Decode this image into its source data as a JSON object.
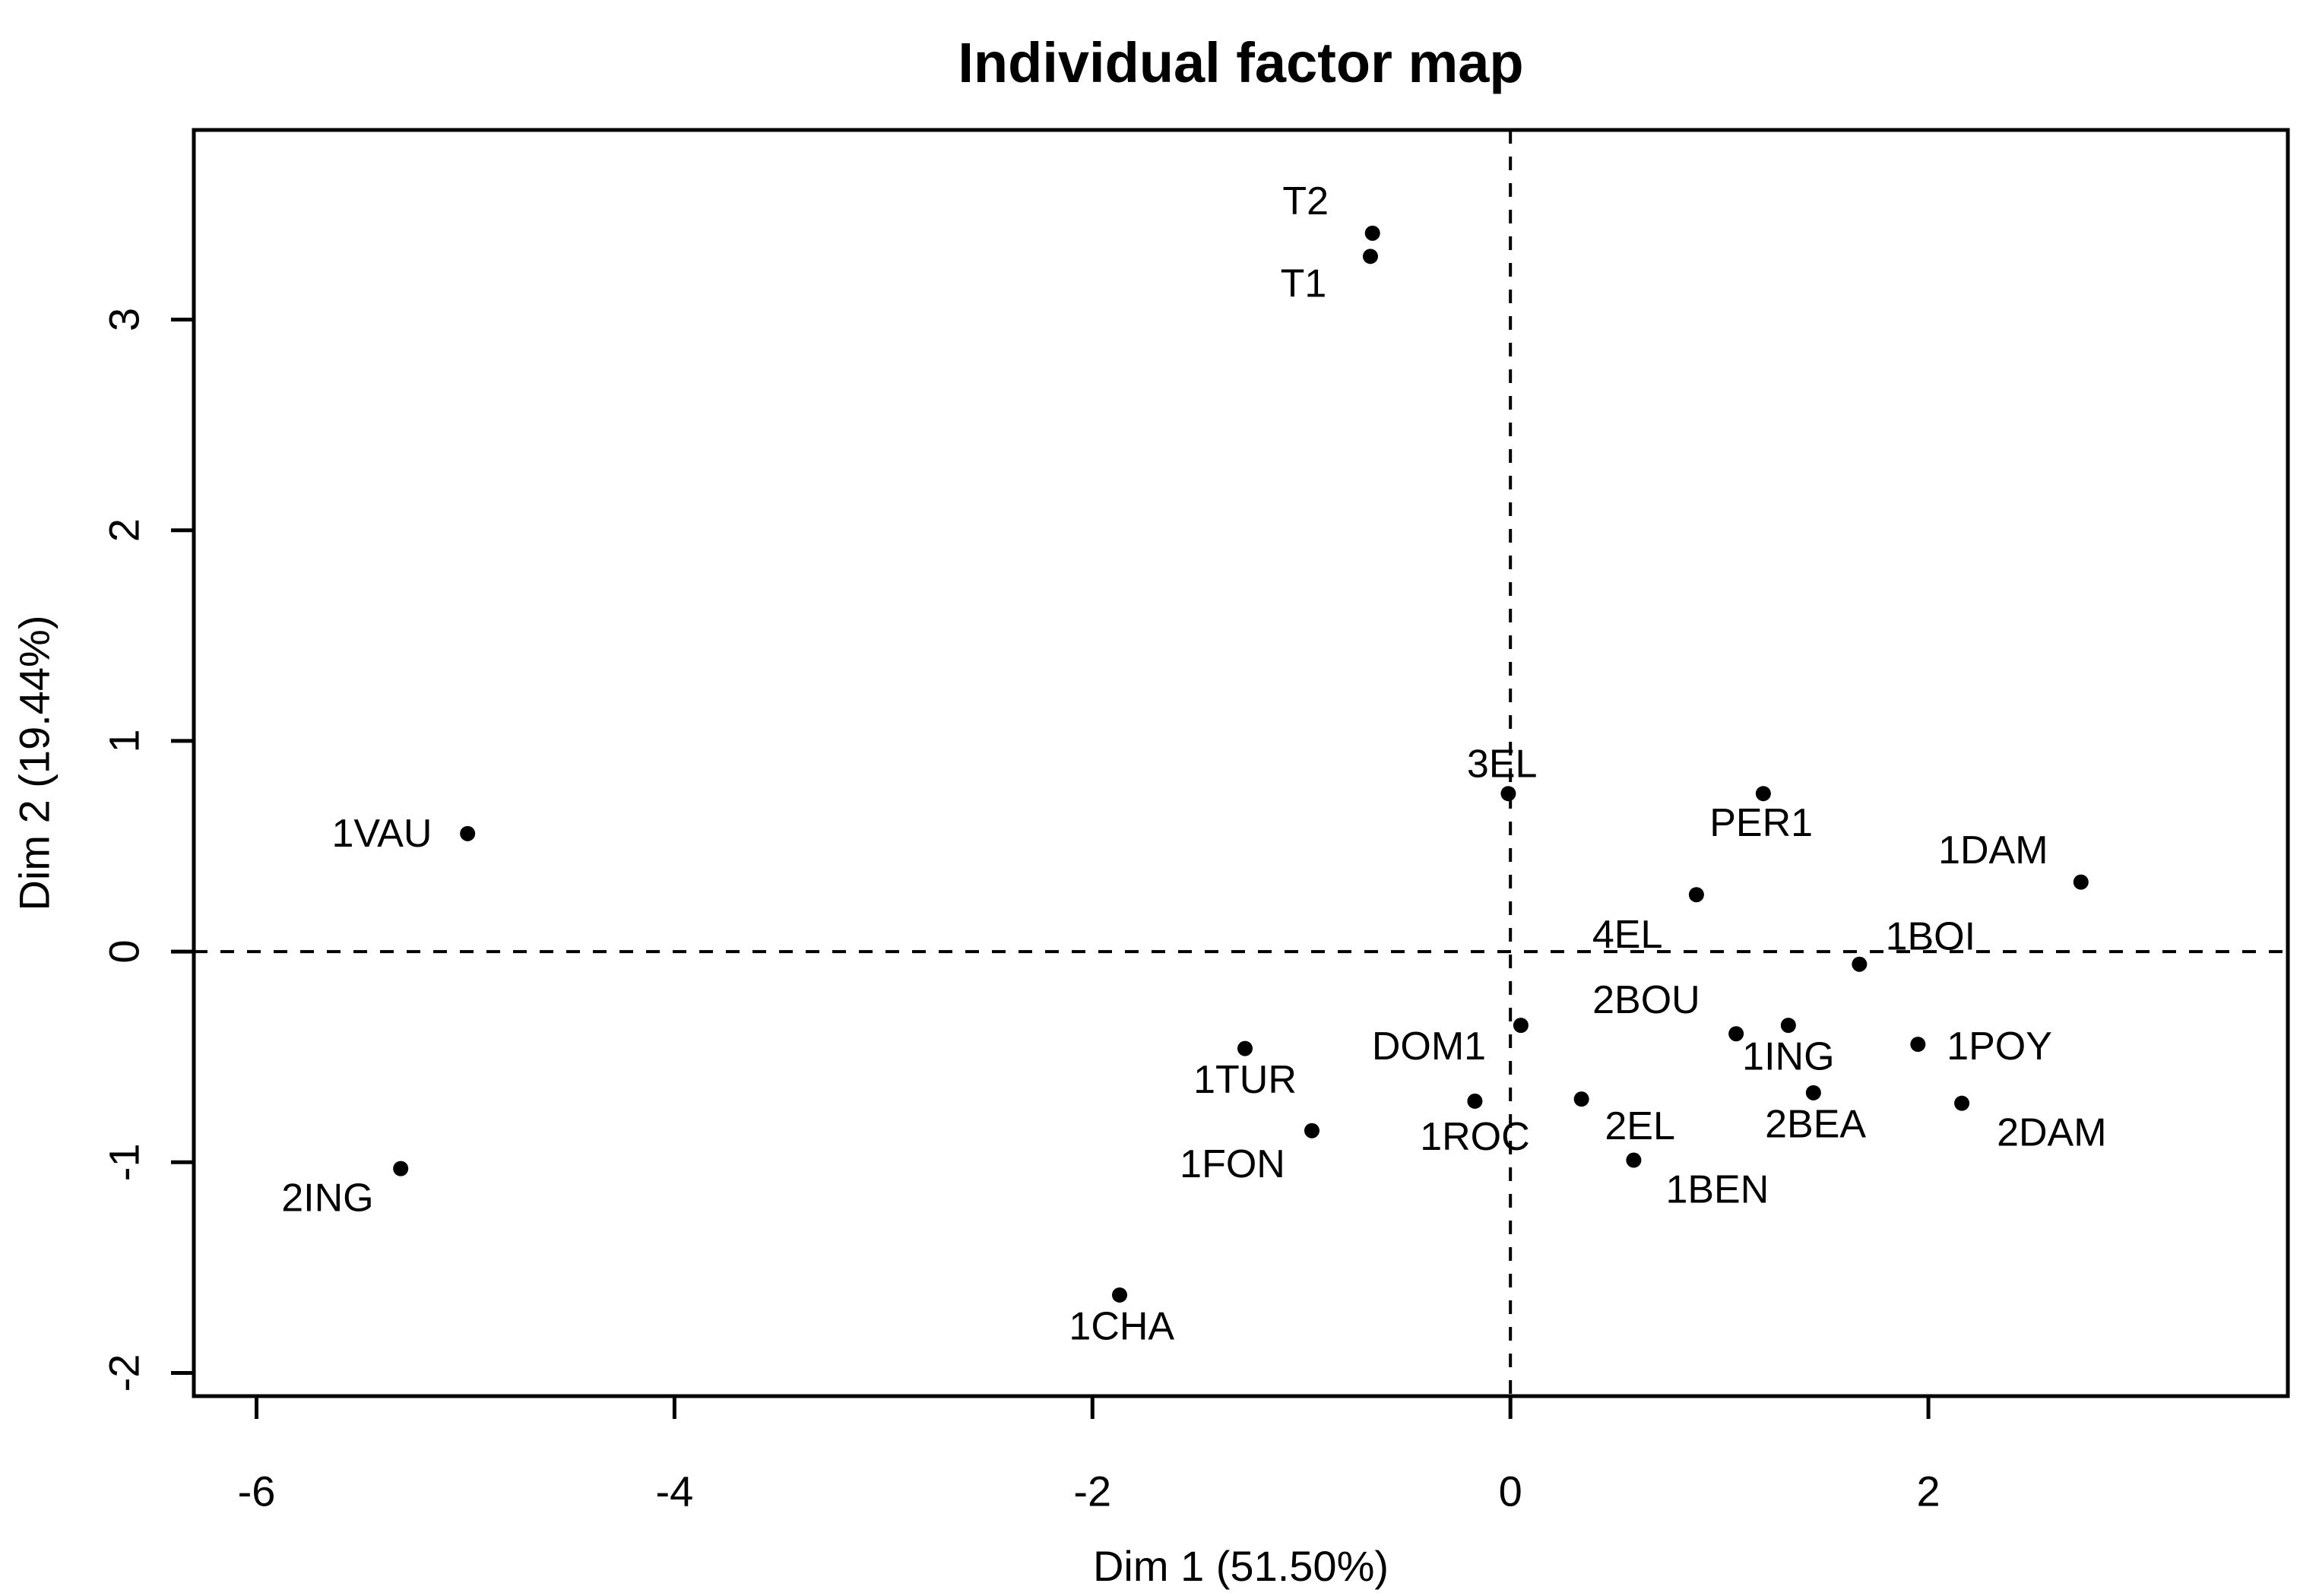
{
  "title": "Individual factor map",
  "axes": {
    "xlabel": "Dim 1 (51.50%)",
    "ylabel": "Dim 2 (19.44%)"
  },
  "colors": {
    "background": "#ffffff",
    "foreground": "#000000",
    "point_color": "#000000",
    "reference_line_color": "#000000"
  },
  "chart_data": {
    "type": "scatter",
    "title": "Individual factor map",
    "xlabel": "Dim 1 (51.50%)",
    "ylabel": "Dim 2 (19.44%)",
    "xlim": [
      -6.3,
      3.72
    ],
    "ylim": [
      -2.11,
      3.9
    ],
    "x_ticks": [
      -6,
      -4,
      -2,
      0,
      2
    ],
    "y_ticks": [
      -2,
      -1,
      0,
      1,
      2,
      3
    ],
    "grid": false,
    "legend": "none",
    "reference_lines": {
      "vline_x": 0,
      "hline_y": 0,
      "style": "dashed"
    },
    "points": [
      {
        "label": "T2",
        "x": -0.66,
        "y": 3.41,
        "label_x": -0.98,
        "label_y": 3.56
      },
      {
        "label": "T1",
        "x": -0.67,
        "y": 3.3,
        "label_x": -0.99,
        "label_y": 3.17
      },
      {
        "label": "1VAU",
        "x": -4.99,
        "y": 0.56,
        "label_x": -5.4,
        "label_y": 0.56
      },
      {
        "label": "2ING",
        "x": -5.31,
        "y": -1.03,
        "label_x": -5.66,
        "label_y": -1.17
      },
      {
        "label": "1CHA",
        "x": -1.87,
        "y": -1.63,
        "label_x": -1.86,
        "label_y": -1.78
      },
      {
        "label": "1TUR",
        "x": -1.27,
        "y": -0.46,
        "label_x": -1.27,
        "label_y": -0.61
      },
      {
        "label": "1FON",
        "x": -0.95,
        "y": -0.85,
        "label_x": -1.33,
        "label_y": -1.01
      },
      {
        "label": "DOM1",
        "x": 0.05,
        "y": -0.35,
        "label_x": -0.39,
        "label_y": -0.45
      },
      {
        "label": "1ROC",
        "x": -0.17,
        "y": -0.71,
        "label_x": -0.17,
        "label_y": -0.88
      },
      {
        "label": "2EL",
        "x": 0.34,
        "y": -0.7,
        "label_x": 0.62,
        "label_y": -0.83
      },
      {
        "label": "1BEN",
        "x": 0.59,
        "y": -0.99,
        "label_x": 0.99,
        "label_y": -1.13
      },
      {
        "label": "2BOU",
        "x": 1.08,
        "y": -0.39,
        "label_x": 0.65,
        "label_y": -0.23
      },
      {
        "label": "1ING",
        "x": 1.33,
        "y": -0.35,
        "label_x": 1.33,
        "label_y": -0.5
      },
      {
        "label": "2BEA",
        "x": 1.45,
        "y": -0.67,
        "label_x": 1.46,
        "label_y": -0.82
      },
      {
        "label": "4EL",
        "x": 0.89,
        "y": 0.27,
        "label_x": 0.56,
        "label_y": 0.08
      },
      {
        "label": "PER1",
        "x": 1.21,
        "y": 0.75,
        "label_x": 1.2,
        "label_y": 0.61
      },
      {
        "label": "1BOI",
        "x": 1.67,
        "y": -0.06,
        "label_x": 2.01,
        "label_y": 0.07
      },
      {
        "label": "1DAM",
        "x": 2.73,
        "y": 0.33,
        "label_x": 2.31,
        "label_y": 0.48
      },
      {
        "label": "1POY",
        "x": 1.95,
        "y": -0.44,
        "label_x": 2.34,
        "label_y": -0.45
      },
      {
        "label": "2DAM",
        "x": 2.16,
        "y": -0.72,
        "label_x": 2.59,
        "label_y": -0.86
      },
      {
        "label": "3EL",
        "x": -0.01,
        "y": 0.75,
        "label_x": -0.04,
        "label_y": 0.89
      }
    ]
  }
}
